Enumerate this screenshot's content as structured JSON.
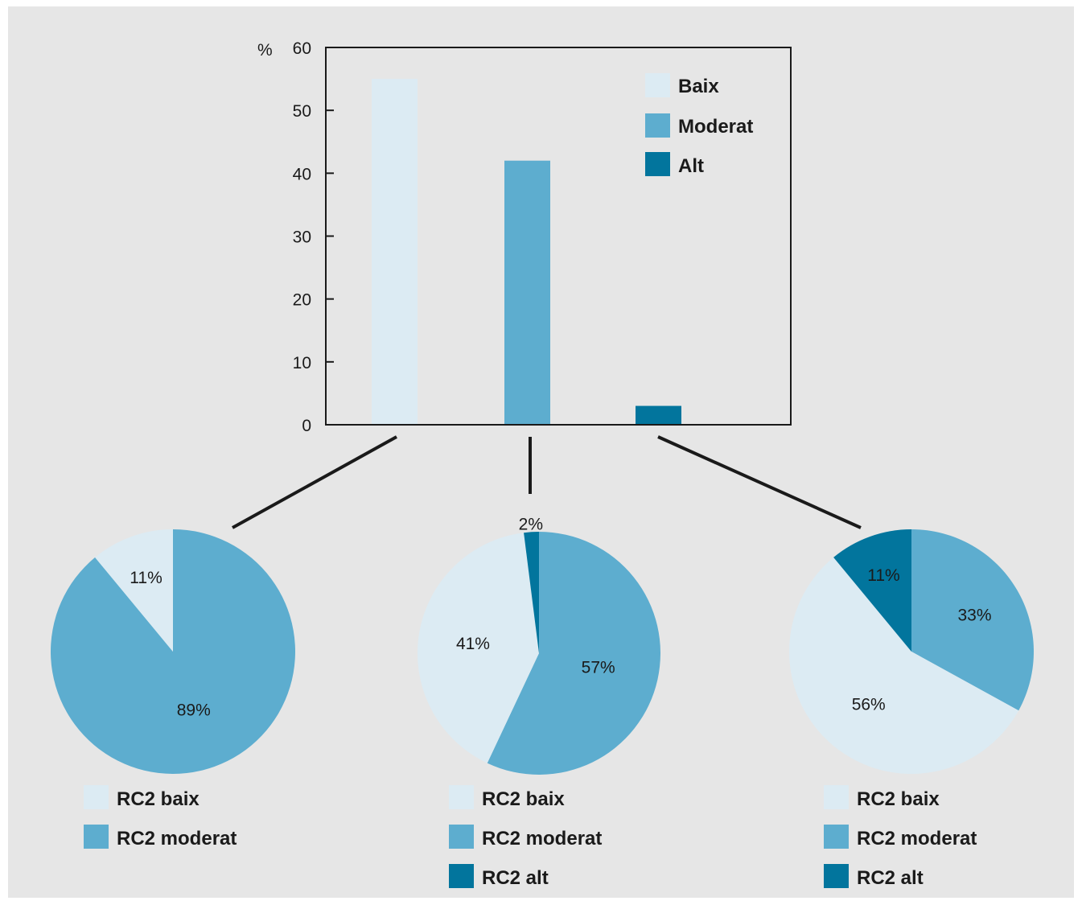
{
  "colors": {
    "baix": "#dcebf3",
    "moderat": "#5dadcf",
    "alt": "#02759d",
    "axis": "#1a1a1a",
    "background": "#e6e6e6"
  },
  "chart_data": [
    {
      "type": "bar",
      "yunit": "%",
      "ylim": [
        0,
        60
      ],
      "yticks": [
        "0",
        "10",
        "20",
        "30",
        "40",
        "50",
        "60"
      ],
      "categories": [
        "Baix",
        "Moderat",
        "Alt"
      ],
      "values": [
        55,
        42,
        3
      ],
      "legend": [
        "Baix",
        "Moderat",
        "Alt"
      ],
      "legend_position": "top-right"
    },
    {
      "type": "pie",
      "slices": [
        {
          "label": "RC2 baix",
          "value": 11,
          "text": "11%"
        },
        {
          "label": "RC2 moderat",
          "value": 89,
          "text": "89%"
        }
      ],
      "legend": [
        "RC2 baix",
        "RC2 moderat"
      ]
    },
    {
      "type": "pie",
      "slices": [
        {
          "label": "RC2 baix",
          "value": 41,
          "text": "41%"
        },
        {
          "label": "RC2 moderat",
          "value": 57,
          "text": "57%"
        },
        {
          "label": "RC2 alt",
          "value": 2,
          "text": "2%"
        }
      ],
      "legend": [
        "RC2 baix",
        "RC2 moderat",
        "RC2 alt"
      ]
    },
    {
      "type": "pie",
      "slices": [
        {
          "label": "RC2 baix",
          "value": 56,
          "text": "56%"
        },
        {
          "label": "RC2 moderat",
          "value": 33,
          "text": "33%"
        },
        {
          "label": "RC2 alt",
          "value": 11,
          "text": "11%"
        }
      ],
      "legend": [
        "RC2 baix",
        "RC2 moderat",
        "RC2 alt"
      ]
    }
  ]
}
